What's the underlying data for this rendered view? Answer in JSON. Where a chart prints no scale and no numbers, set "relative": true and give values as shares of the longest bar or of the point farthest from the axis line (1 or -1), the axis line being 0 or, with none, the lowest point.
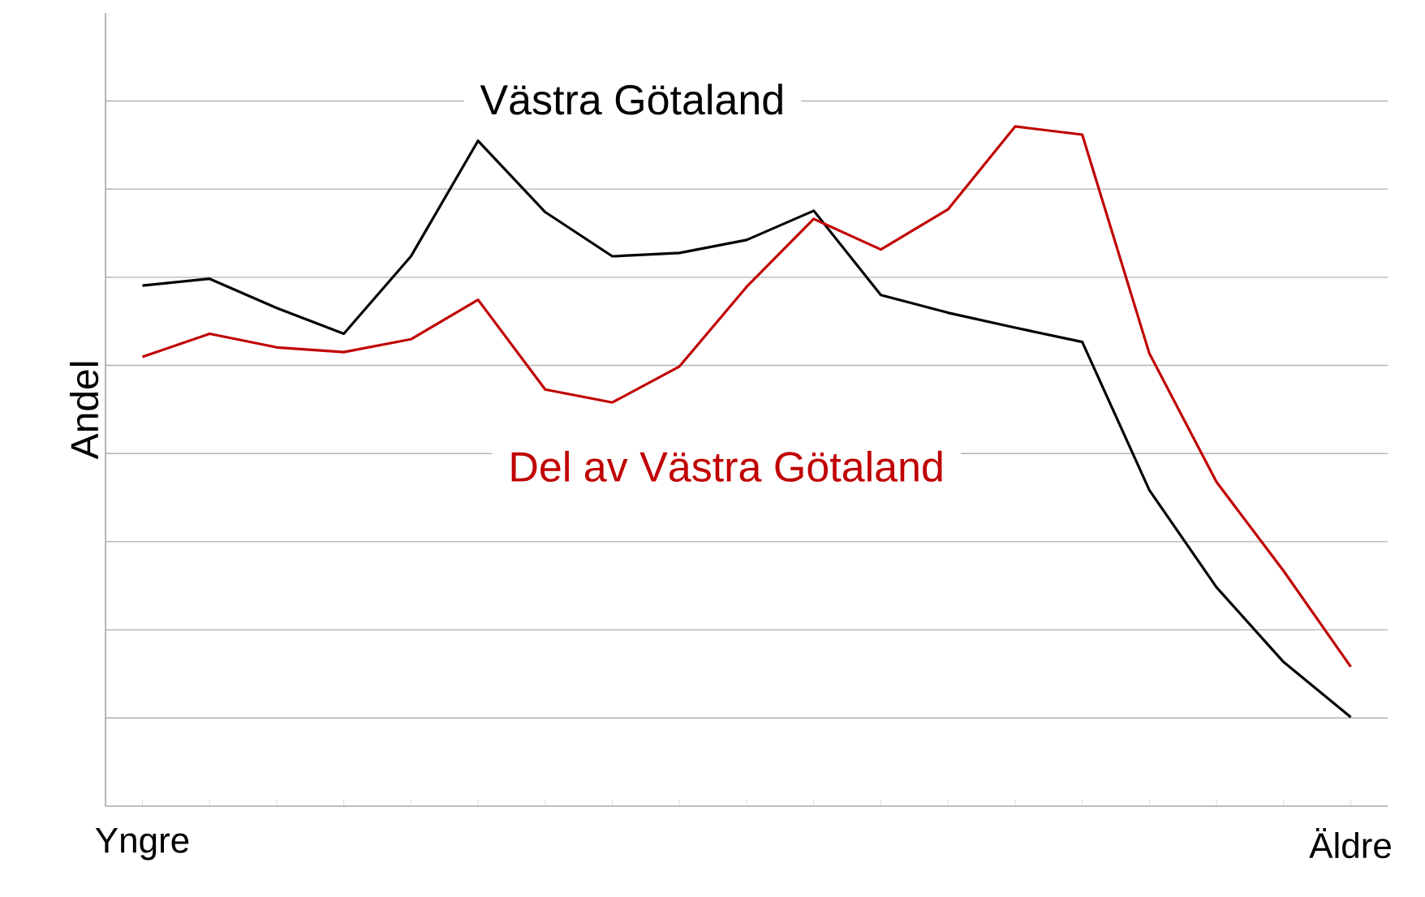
{
  "chart_data": {
    "type": "line",
    "relative": true,
    "ylabel": "Andel",
    "grid": "y",
    "categories": [
      "Yngre",
      null,
      null,
      null,
      null,
      null,
      null,
      null,
      null,
      null,
      null,
      null,
      null,
      null,
      null,
      null,
      null,
      null,
      "Äldre"
    ],
    "series": [
      {
        "name": "Västra Götaland",
        "color": "#000000",
        "values": [
          0.766,
          0.776,
          0.733,
          0.695,
          0.809,
          0.979,
          0.874,
          0.809,
          0.814,
          0.833,
          0.876,
          0.752,
          0.726,
          0.704,
          0.683,
          0.465,
          0.322,
          0.212,
          0.131
        ]
      },
      {
        "name": "Del av Västra Götaland",
        "color": "#c00000",
        "values": [
          0.661,
          0.695,
          0.675,
          0.668,
          0.687,
          0.745,
          0.613,
          0.594,
          0.647,
          0.764,
          0.864,
          0.819,
          0.878,
          1,
          0.988,
          0.666,
          0.477,
          0.346,
          0.205
        ]
      }
    ]
  }
}
